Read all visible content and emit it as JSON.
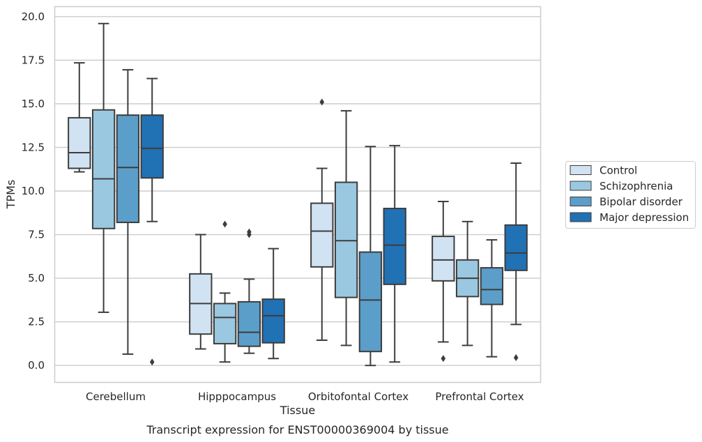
{
  "chart_data": {
    "type": "box",
    "title": "Transcript expression for ENST00000369004 by tissue",
    "xlabel": "Tissue",
    "ylabel": "TPMs",
    "ylim": [
      -0.95,
      20.55
    ],
    "yticks": [
      "0.0",
      "2.5",
      "5.0",
      "7.5",
      "10.0",
      "12.5",
      "15.0",
      "17.5",
      "20.0"
    ],
    "ytick_values": [
      0,
      2.5,
      5,
      7.5,
      10,
      12.5,
      15,
      17.5,
      20
    ],
    "grid": "horizontal",
    "legend_position": "right",
    "categories": [
      "Cerebellum",
      "Hipppocampus",
      "Orbitofontal Cortex",
      "Prefrontal Cortex"
    ],
    "series": [
      {
        "name": "Control",
        "color": "#d1e2f2",
        "boxes": [
          {
            "whislo": 11.1,
            "q1": 11.3,
            "med": 12.2,
            "q3": 14.2,
            "whishi": 17.35,
            "fliers": []
          },
          {
            "whislo": 0.95,
            "q1": 1.8,
            "med": 3.55,
            "q3": 5.25,
            "whishi": 7.5,
            "fliers": []
          },
          {
            "whislo": 1.45,
            "q1": 5.65,
            "med": 7.7,
            "q3": 9.3,
            "whishi": 11.3,
            "fliers": [
              15.1
            ]
          },
          {
            "whislo": 1.35,
            "q1": 4.85,
            "med": 6.05,
            "q3": 7.4,
            "whishi": 9.4,
            "fliers": [
              0.4
            ]
          }
        ]
      },
      {
        "name": "Schizophrenia",
        "color": "#9ac8e0",
        "boxes": [
          {
            "whislo": 3.05,
            "q1": 7.85,
            "med": 10.7,
            "q3": 14.65,
            "whishi": 19.6,
            "fliers": []
          },
          {
            "whislo": 0.2,
            "q1": 1.25,
            "med": 2.75,
            "q3": 3.55,
            "whishi": 4.15,
            "fliers": [
              8.1
            ]
          },
          {
            "whislo": 1.15,
            "q1": 3.9,
            "med": 7.15,
            "q3": 10.5,
            "whishi": 14.6,
            "fliers": []
          },
          {
            "whislo": 1.15,
            "q1": 3.95,
            "med": 5.0,
            "q3": 6.05,
            "whishi": 8.25,
            "fliers": []
          }
        ]
      },
      {
        "name": "Bipolar disorder",
        "color": "#5b9ec9",
        "boxes": [
          {
            "whislo": 0.65,
            "q1": 8.2,
            "med": 11.35,
            "q3": 14.35,
            "whishi": 16.95,
            "fliers": []
          },
          {
            "whislo": 0.7,
            "q1": 1.1,
            "med": 1.9,
            "q3": 3.65,
            "whishi": 4.95,
            "fliers": [
              7.5,
              7.65
            ]
          },
          {
            "whislo": 0.0,
            "q1": 0.8,
            "med": 3.75,
            "q3": 6.5,
            "whishi": 12.55,
            "fliers": []
          },
          {
            "whislo": 0.5,
            "q1": 3.5,
            "med": 4.35,
            "q3": 5.6,
            "whishi": 7.2,
            "fliers": []
          }
        ]
      },
      {
        "name": "Major depression",
        "color": "#2171b5",
        "boxes": [
          {
            "whislo": 8.25,
            "q1": 10.75,
            "med": 12.45,
            "q3": 14.35,
            "whishi": 16.45,
            "fliers": [
              0.2
            ]
          },
          {
            "whislo": 0.4,
            "q1": 1.3,
            "med": 2.85,
            "q3": 3.8,
            "whishi": 6.7,
            "fliers": []
          },
          {
            "whislo": 0.2,
            "q1": 4.65,
            "med": 6.9,
            "q3": 9.0,
            "whishi": 12.6,
            "fliers": []
          },
          {
            "whislo": 2.35,
            "q1": 5.45,
            "med": 6.45,
            "q3": 8.05,
            "whishi": 11.6,
            "fliers": [
              0.45
            ]
          }
        ]
      }
    ]
  }
}
